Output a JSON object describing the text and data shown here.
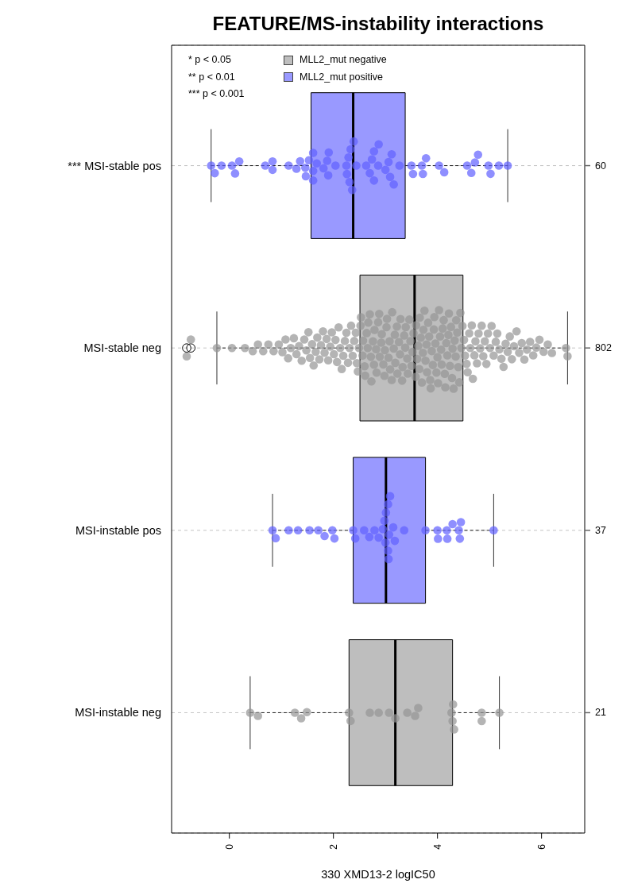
{
  "chart_data": {
    "type": "box",
    "orientation": "horizontal",
    "title": "FEATURE/MS-instability interactions",
    "xlabel": "330 XMD13-2 logIC50",
    "categories": [
      "*** MSI-stable pos",
      "MSI-stable neg",
      "MSI-instable pos",
      "MSI-instable neg"
    ],
    "y2_categories": [
      "60",
      "802",
      "37",
      "21"
    ],
    "xlim": [
      -1.11,
      6.83
    ],
    "xticks": [
      0,
      2,
      4,
      6
    ],
    "grid": "y",
    "legend": "top left",
    "marker": "circle",
    "annotations": [
      "* p < 0.05",
      "** p < 0.01",
      "*** p < 0.001"
    ],
    "series": [
      {
        "type": "box",
        "name": "MLL2_mut negative",
        "color": "#bebebe",
        "boxes": [
          null,
          {
            "low": -0.24,
            "q1": 2.51,
            "median": 3.56,
            "q3": 4.49,
            "high": 6.5,
            "outliers": [
              -0.82,
              -0.74
            ]
          },
          null,
          {
            "low": 0.4,
            "q1": 2.3,
            "median": 3.19,
            "q3": 4.29,
            "high": 5.19
          }
        ]
      },
      {
        "type": "box",
        "name": "MLL2_mut positive",
        "color": "#9999ff",
        "boxes": [
          {
            "low": -0.35,
            "q1": 1.57,
            "median": 2.38,
            "q3": 3.38,
            "high": 5.35
          },
          null,
          {
            "low": 0.83,
            "q1": 2.38,
            "median": 3.01,
            "q3": 3.77,
            "high": 5.08
          },
          null
        ]
      },
      {
        "type": "scatter",
        "color": "#b4b4b4",
        "x": [
          "MSI-stable neg",
          "MSI-stable neg",
          "MSI-stable neg",
          "MSI-stable neg",
          "MSI-stable neg",
          "MSI-stable neg",
          "MSI-stable neg",
          "MSI-stable neg",
          "MSI-stable neg",
          "MSI-stable neg",
          "MSI-stable neg",
          "MSI-stable neg",
          "MSI-stable neg",
          "MSI-stable neg",
          "MSI-stable neg",
          "MSI-stable neg",
          "MSI-stable neg",
          "MSI-stable neg",
          "MSI-stable neg",
          "MSI-stable neg",
          "MSI-stable neg",
          "MSI-stable neg",
          "MSI-stable neg",
          "MSI-stable neg",
          "MSI-stable neg",
          "MSI-stable neg",
          "MSI-stable neg",
          "MSI-stable neg",
          "MSI-stable neg",
          "MSI-stable neg",
          "MSI-stable neg",
          "MSI-stable neg",
          "MSI-stable neg",
          "MSI-stable neg",
          "MSI-stable neg",
          "MSI-stable neg",
          "MSI-stable neg",
          "MSI-stable neg",
          "MSI-stable neg",
          "MSI-stable neg",
          "MSI-stable neg",
          "MSI-stable neg",
          "MSI-stable neg",
          "MSI-stable neg",
          "MSI-stable neg",
          "MSI-stable neg",
          "MSI-stable neg",
          "MSI-stable neg",
          "MSI-stable neg",
          "MSI-stable neg",
          "MSI-stable neg",
          "MSI-stable neg",
          "MSI-stable neg",
          "MSI-stable neg",
          "MSI-stable neg",
          "MSI-stable neg",
          "MSI-stable neg",
          "MSI-stable neg",
          "MSI-stable neg",
          "MSI-stable neg",
          "MSI-stable neg",
          "MSI-stable neg",
          "MSI-stable neg",
          "MSI-stable neg",
          "MSI-stable neg",
          "MSI-stable neg",
          "MSI-stable neg",
          "MSI-stable neg",
          "MSI-stable neg",
          "MSI-stable neg",
          "MSI-stable neg",
          "MSI-stable neg",
          "MSI-stable neg",
          "MSI-stable neg",
          "MSI-stable neg",
          "MSI-stable neg",
          "MSI-stable neg",
          "MSI-stable neg",
          "MSI-stable neg",
          "MSI-stable neg",
          "MSI-stable neg",
          "MSI-stable neg",
          "MSI-stable neg",
          "MSI-stable neg",
          "MSI-stable neg",
          "MSI-stable neg",
          "MSI-stable neg",
          "MSI-stable neg",
          "MSI-stable neg",
          "MSI-stable neg",
          "MSI-stable neg",
          "MSI-stable neg",
          "MSI-stable neg",
          "MSI-stable neg",
          "MSI-stable neg",
          "MSI-stable neg",
          "MSI-stable neg",
          "MSI-stable neg",
          "MSI-stable neg",
          "MSI-stable neg",
          "MSI-stable neg",
          "MSI-stable neg",
          "MSI-stable neg",
          "MSI-stable neg",
          "MSI-stable neg",
          "MSI-stable neg",
          "MSI-stable neg",
          "MSI-stable neg",
          "MSI-stable neg",
          "MSI-stable neg",
          "MSI-stable neg",
          "MSI-stable neg",
          "MSI-stable neg",
          "MSI-stable neg",
          "MSI-stable neg",
          "MSI-stable neg",
          "MSI-stable neg",
          "MSI-stable neg",
          "MSI-stable neg",
          "MSI-stable neg",
          "MSI-stable neg",
          "MSI-stable neg",
          "MSI-stable neg",
          "MSI-stable neg",
          "MSI-stable neg",
          "MSI-stable neg",
          "MSI-stable neg",
          "MSI-stable neg",
          "MSI-stable neg",
          "MSI-stable neg",
          "MSI-stable neg",
          "MSI-stable neg",
          "MSI-stable neg",
          "MSI-stable neg",
          "MSI-stable neg",
          "MSI-stable neg",
          "MSI-stable neg",
          "MSI-stable neg",
          "MSI-stable neg",
          "MSI-stable neg",
          "MSI-stable neg",
          "MSI-stable neg",
          "MSI-stable neg",
          "MSI-stable neg",
          "MSI-stable neg",
          "MSI-stable neg",
          "MSI-stable neg",
          "MSI-stable neg",
          "MSI-stable neg",
          "MSI-stable neg",
          "MSI-stable neg",
          "MSI-stable neg",
          "MSI-stable neg",
          "MSI-stable neg",
          "MSI-stable neg",
          "MSI-stable neg",
          "MSI-stable neg",
          "MSI-stable neg",
          "MSI-stable neg",
          "MSI-stable neg",
          "MSI-stable neg",
          "MSI-stable neg",
          "MSI-stable neg",
          "MSI-stable neg",
          "MSI-stable neg",
          "MSI-stable neg",
          "MSI-stable neg",
          "MSI-stable neg",
          "MSI-stable neg",
          "MSI-stable neg",
          "MSI-stable neg",
          "MSI-stable neg",
          "MSI-stable neg",
          "MSI-stable neg",
          "MSI-stable neg",
          "MSI-stable neg",
          "MSI-stable neg",
          "MSI-stable neg",
          "MSI-stable neg",
          "MSI-stable neg",
          "MSI-stable neg",
          "MSI-stable neg",
          "MSI-stable neg",
          "MSI-stable neg",
          "MSI-stable neg",
          "MSI-stable neg",
          "MSI-stable neg",
          "MSI-stable neg",
          "MSI-stable neg",
          "MSI-stable neg",
          "MSI-stable neg",
          "MSI-stable neg",
          "MSI-stable neg",
          "MSI-stable neg",
          "MSI-stable neg",
          "MSI-stable neg",
          "MSI-stable neg",
          "MSI-stable neg",
          "MSI-stable neg",
          "MSI-stable neg",
          "MSI-stable neg",
          "MSI-stable neg",
          "MSI-instable neg",
          "MSI-instable neg",
          "MSI-instable neg",
          "MSI-instable neg",
          "MSI-instable neg",
          "MSI-instable neg",
          "MSI-instable neg",
          "MSI-instable neg",
          "MSI-instable neg",
          "MSI-instable neg",
          "MSI-instable neg",
          "MSI-instable neg",
          "MSI-instable neg",
          "MSI-instable neg",
          "MSI-instable neg",
          "MSI-instable neg",
          "MSI-instable neg",
          "MSI-instable neg",
          "MSI-instable neg",
          "MSI-instable neg",
          "MSI-instable neg"
        ],
        "values": [
          -0.82,
          -0.74,
          -0.24,
          0.05,
          0.3,
          0.45,
          0.55,
          0.65,
          0.75,
          0.85,
          0.95,
          1.02,
          1.08,
          1.13,
          1.18,
          1.24,
          1.29,
          1.34,
          1.39,
          1.44,
          1.48,
          1.52,
          1.55,
          1.59,
          1.62,
          1.66,
          1.69,
          1.73,
          1.76,
          1.8,
          1.83,
          1.87,
          1.9,
          1.94,
          1.97,
          2.01,
          2.04,
          2.07,
          2.1,
          2.13,
          2.16,
          2.19,
          2.22,
          2.25,
          2.28,
          2.31,
          2.34,
          2.37,
          2.4,
          2.43,
          2.45,
          2.47,
          2.49,
          2.52,
          2.53,
          2.56,
          2.57,
          2.6,
          2.61,
          2.64,
          2.66,
          2.67,
          2.7,
          2.72,
          2.73,
          2.76,
          2.78,
          2.79,
          2.82,
          2.83,
          2.86,
          2.88,
          2.89,
          2.92,
          2.93,
          2.96,
          2.98,
          2.99,
          3.02,
          3.03,
          3.06,
          3.08,
          3.09,
          3.12,
          3.13,
          3.16,
          3.18,
          3.19,
          3.22,
          3.23,
          3.26,
          3.28,
          3.29,
          3.32,
          3.33,
          3.36,
          3.38,
          3.39,
          3.42,
          3.43,
          3.46,
          3.48,
          3.5,
          3.52,
          3.54,
          3.58,
          3.59,
          3.61,
          3.63,
          3.65,
          3.66,
          3.68,
          3.7,
          3.72,
          3.73,
          3.75,
          3.77,
          3.79,
          3.8,
          3.82,
          3.84,
          3.86,
          3.87,
          3.89,
          3.91,
          3.93,
          3.94,
          3.96,
          3.98,
          4.0,
          4.01,
          4.03,
          4.05,
          4.07,
          4.08,
          4.1,
          4.12,
          4.14,
          4.15,
          4.17,
          4.19,
          4.21,
          4.22,
          4.24,
          4.26,
          4.28,
          4.29,
          4.31,
          4.33,
          4.35,
          4.36,
          4.38,
          4.4,
          4.42,
          4.44,
          4.46,
          4.48,
          4.51,
          4.53,
          4.56,
          4.58,
          4.61,
          4.63,
          4.66,
          4.68,
          4.71,
          4.73,
          4.76,
          4.79,
          4.82,
          4.85,
          4.88,
          4.91,
          4.94,
          4.97,
          5.01,
          5.04,
          5.08,
          5.12,
          5.15,
          5.19,
          5.23,
          5.27,
          5.31,
          5.35,
          5.39,
          5.43,
          5.47,
          5.52,
          5.57,
          5.62,
          5.67,
          5.72,
          5.78,
          5.84,
          5.9,
          5.96,
          6.04,
          6.12,
          6.2,
          6.47,
          6.5,
          0.4,
          0.55,
          1.26,
          1.38,
          1.49,
          2.3,
          2.33,
          2.7,
          2.87,
          3.07,
          3.19,
          3.42,
          3.57,
          3.63,
          4.27,
          4.29,
          4.3,
          4.32,
          4.85,
          4.85,
          5.19
        ]
      },
      {
        "type": "scatter",
        "color": "#8f8fff",
        "x": [
          "*** MSI-stable pos",
          "*** MSI-stable pos",
          "*** MSI-stable pos",
          "*** MSI-stable pos",
          "*** MSI-stable pos",
          "*** MSI-stable pos",
          "*** MSI-stable pos",
          "*** MSI-stable pos",
          "*** MSI-stable pos",
          "*** MSI-stable pos",
          "*** MSI-stable pos",
          "*** MSI-stable pos",
          "*** MSI-stable pos",
          "*** MSI-stable pos",
          "*** MSI-stable pos",
          "*** MSI-stable pos",
          "*** MSI-stable pos",
          "*** MSI-stable pos",
          "*** MSI-stable pos",
          "*** MSI-stable pos",
          "*** MSI-stable pos",
          "*** MSI-stable pos",
          "*** MSI-stable pos",
          "*** MSI-stable pos",
          "*** MSI-stable pos",
          "*** MSI-stable pos",
          "*** MSI-stable pos",
          "*** MSI-stable pos",
          "*** MSI-stable pos",
          "*** MSI-stable pos",
          "*** MSI-stable pos",
          "*** MSI-stable pos",
          "*** MSI-stable pos",
          "*** MSI-stable pos",
          "*** MSI-stable pos",
          "*** MSI-stable pos",
          "*** MSI-stable pos",
          "*** MSI-stable pos",
          "*** MSI-stable pos",
          "*** MSI-stable pos",
          "*** MSI-stable pos",
          "*** MSI-stable pos",
          "*** MSI-stable pos",
          "*** MSI-stable pos",
          "*** MSI-stable pos",
          "*** MSI-stable pos",
          "*** MSI-stable pos",
          "*** MSI-stable pos",
          "*** MSI-stable pos",
          "*** MSI-stable pos",
          "*** MSI-stable pos",
          "*** MSI-stable pos",
          "*** MSI-stable pos",
          "*** MSI-stable pos",
          "*** MSI-stable pos",
          "*** MSI-stable pos",
          "*** MSI-stable pos",
          "*** MSI-stable pos",
          "*** MSI-stable pos",
          "*** MSI-stable pos",
          "MSI-instable pos",
          "MSI-instable pos",
          "MSI-instable pos",
          "MSI-instable pos",
          "MSI-instable pos",
          "MSI-instable pos",
          "MSI-instable pos",
          "MSI-instable pos",
          "MSI-instable pos",
          "MSI-instable pos",
          "MSI-instable pos",
          "MSI-instable pos",
          "MSI-instable pos",
          "MSI-instable pos",
          "MSI-instable pos",
          "MSI-instable pos",
          "MSI-instable pos",
          "MSI-instable pos",
          "MSI-instable pos",
          "MSI-instable pos",
          "MSI-instable pos",
          "MSI-instable pos",
          "MSI-instable pos",
          "MSI-instable pos",
          "MSI-instable pos",
          "MSI-instable pos",
          "MSI-instable pos",
          "MSI-instable pos",
          "MSI-instable pos",
          "MSI-instable pos",
          "MSI-instable pos",
          "MSI-instable pos",
          "MSI-instable pos",
          "MSI-instable pos",
          "MSI-instable pos",
          "MSI-instable pos",
          "MSI-instable pos"
        ],
        "values": [
          -0.35,
          -0.28,
          -0.15,
          0.05,
          0.11,
          0.19,
          0.69,
          0.83,
          0.83,
          1.14,
          1.29,
          1.36,
          1.46,
          1.47,
          1.53,
          1.61,
          1.61,
          1.61,
          1.68,
          1.81,
          1.88,
          1.91,
          1.9,
          2.04,
          2.25,
          2.26,
          2.29,
          2.31,
          2.33,
          2.36,
          2.39,
          2.44,
          2.63,
          2.7,
          2.74,
          2.78,
          2.78,
          2.86,
          2.87,
          3.0,
          3.06,
          3.12,
          3.09,
          3.16,
          3.27,
          3.5,
          3.53,
          3.7,
          3.72,
          3.78,
          4.03,
          4.13,
          4.57,
          4.65,
          4.72,
          4.78,
          4.98,
          5.02,
          5.18,
          5.35,
          0.83,
          0.89,
          1.14,
          1.32,
          1.54,
          1.71,
          1.83,
          1.98,
          2.02,
          2.38,
          2.42,
          2.59,
          2.69,
          2.79,
          2.87,
          2.95,
          2.98,
          3.0,
          3.01,
          3.05,
          3.05,
          3.06,
          3.07,
          3.09,
          3.15,
          3.18,
          3.36,
          3.77,
          4.0,
          4.01,
          4.18,
          4.19,
          4.29,
          4.41,
          4.43,
          4.45,
          5.08
        ]
      }
    ]
  }
}
